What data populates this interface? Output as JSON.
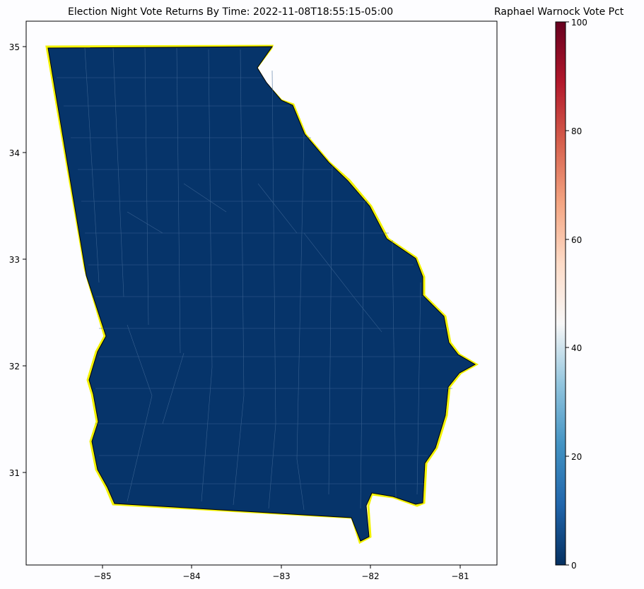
{
  "map": {
    "title": "Election Night Vote Returns By Time: 2022-11-08T18:55:15-05:00",
    "x_ticks": [
      "−85",
      "−84",
      "−83",
      "−82",
      "−81"
    ],
    "y_ticks": [
      "35",
      "34",
      "33",
      "32",
      "31"
    ],
    "fill_color": "#06346a",
    "border_color": "#000000",
    "county_line_color": "#3a5f8f",
    "region": "Georgia counties"
  },
  "colorbar": {
    "title": "Raphael Warnock Vote Pct",
    "ticks": [
      "0",
      "20",
      "40",
      "60",
      "80",
      "100"
    ],
    "range": [
      0,
      100
    ],
    "colormap": "RdBu_r",
    "stops": [
      "#053061",
      "#2166ac",
      "#4393c3",
      "#92c5de",
      "#f7f7f7",
      "#fddbc7",
      "#f4a582",
      "#d6604d",
      "#b2182b",
      "#67001f"
    ]
  }
}
